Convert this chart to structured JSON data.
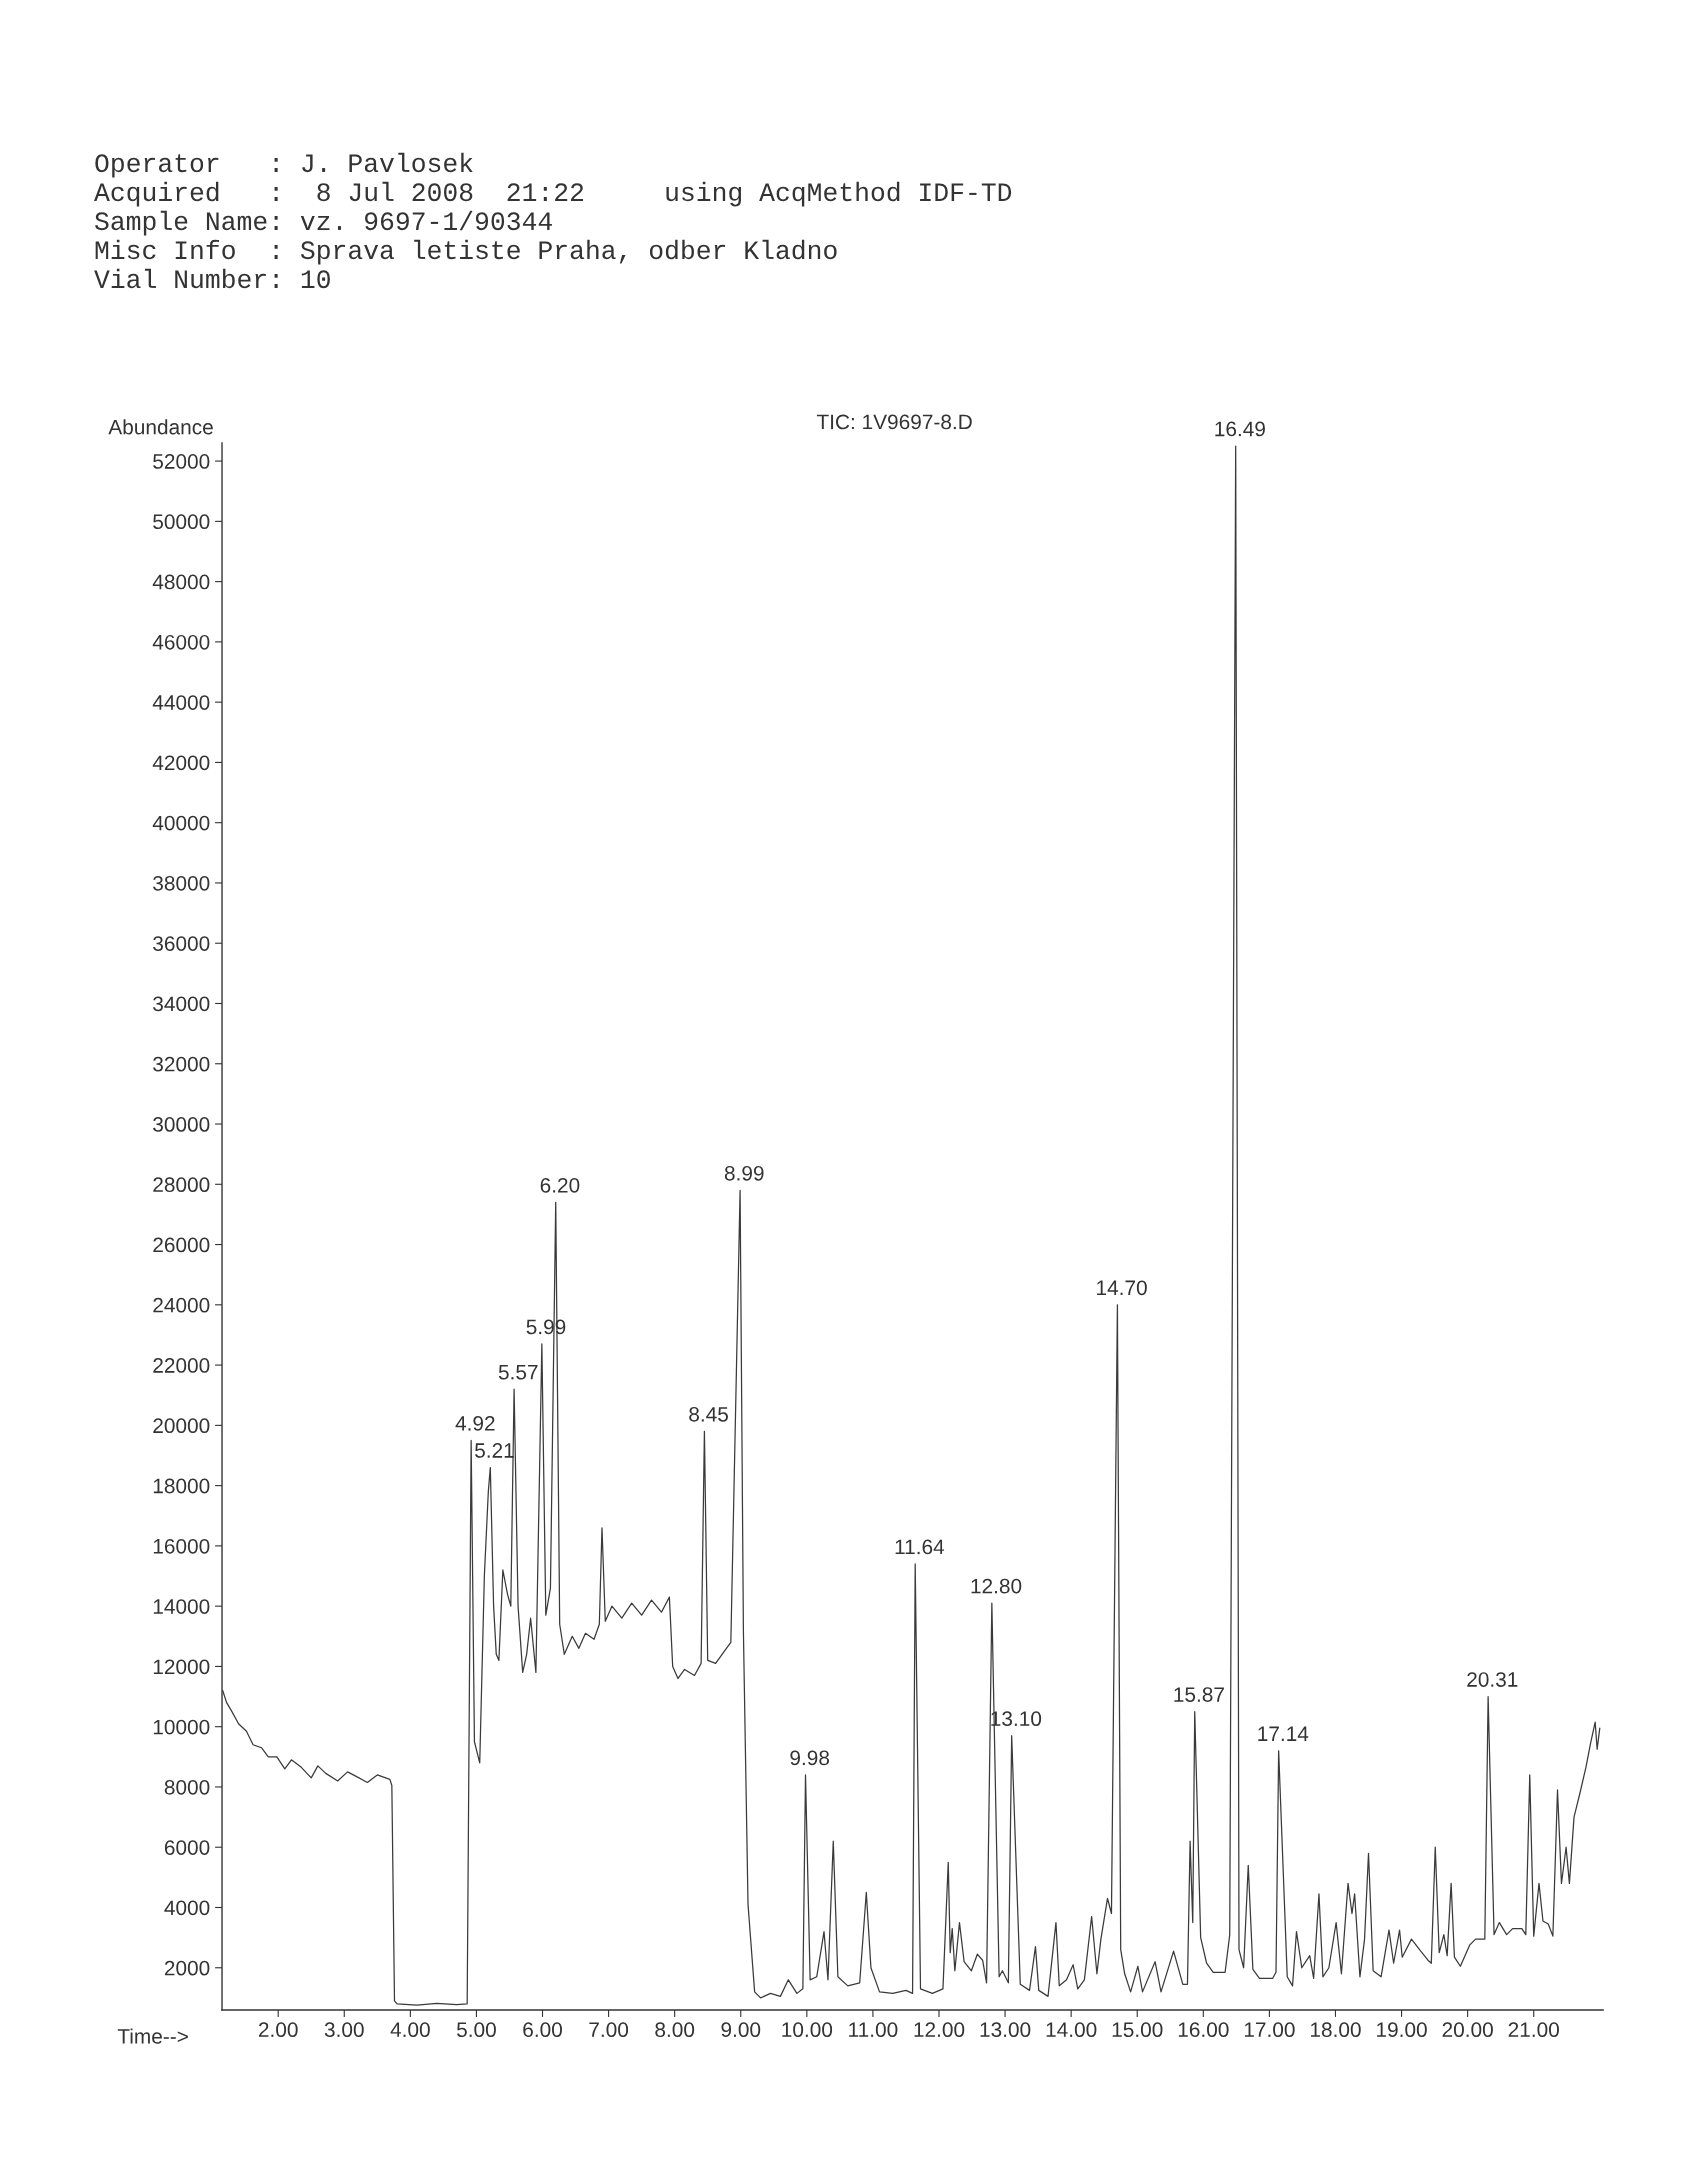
{
  "chart_data": {
    "type": "line",
    "title": "TIC: 1V9697-8.D",
    "xlabel": "Time-->",
    "ylabel": "Abundance",
    "x": [
      1.16,
      1.22,
      1.3,
      1.4,
      1.52,
      1.62,
      1.75,
      1.85,
      1.98,
      2.1,
      2.2,
      2.35,
      2.5,
      2.6,
      2.72,
      2.9,
      3.05,
      3.18,
      3.35,
      3.5,
      3.69,
      3.72,
      3.76,
      3.8,
      4.1,
      4.4,
      4.7,
      4.86,
      4.92,
      4.97,
      5.05,
      5.12,
      5.18,
      5.21,
      5.26,
      5.3,
      5.34,
      5.4,
      5.47,
      5.52,
      5.57,
      5.63,
      5.7,
      5.76,
      5.82,
      5.9,
      5.99,
      6.05,
      6.12,
      6.2,
      6.26,
      6.33,
      6.45,
      6.55,
      6.65,
      6.78,
      6.86,
      6.9,
      6.95,
      7.05,
      7.2,
      7.35,
      7.5,
      7.65,
      7.8,
      7.92,
      7.97,
      8.05,
      8.15,
      8.3,
      8.4,
      8.45,
      8.5,
      8.62,
      8.75,
      8.85,
      8.88,
      8.99,
      9.04,
      9.11,
      9.21,
      9.3,
      9.45,
      9.6,
      9.72,
      9.85,
      9.94,
      9.98,
      10.05,
      10.15,
      10.26,
      10.32,
      10.4,
      10.47,
      10.62,
      10.8,
      10.9,
      10.97,
      11.1,
      11.3,
      11.5,
      11.6,
      11.64,
      11.72,
      11.9,
      12.06,
      12.14,
      12.17,
      12.2,
      12.24,
      12.31,
      12.38,
      12.49,
      12.58,
      12.66,
      12.72,
      12.8,
      12.91,
      12.96,
      13.05,
      13.1,
      13.23,
      13.37,
      13.46,
      13.51,
      13.65,
      13.77,
      13.82,
      13.93,
      14.03,
      14.1,
      14.2,
      14.31,
      14.39,
      14.45,
      14.55,
      14.61,
      14.7,
      14.75,
      14.81,
      14.9,
      15.01,
      15.08,
      15.27,
      15.36,
      15.55,
      15.69,
      15.76,
      15.8,
      15.84,
      15.87,
      15.96,
      16.05,
      16.15,
      16.33,
      16.4,
      16.49,
      16.54,
      16.61,
      16.68,
      16.75,
      16.85,
      17.05,
      17.1,
      17.14,
      17.27,
      17.35,
      17.41,
      17.49,
      17.61,
      17.67,
      17.75,
      17.81,
      17.9,
      18.01,
      18.09,
      18.19,
      18.25,
      18.29,
      18.37,
      18.44,
      18.5,
      18.57,
      18.69,
      18.81,
      18.88,
      18.97,
      19.01,
      19.15,
      19.29,
      19.4,
      19.45,
      19.51,
      19.57,
      19.64,
      19.69,
      19.75,
      19.8,
      19.89,
      20.03,
      20.12,
      20.26,
      20.31,
      20.4,
      20.48,
      20.59,
      20.68,
      20.82,
      20.88,
      20.94,
      21.0,
      21.08,
      21.14,
      21.22,
      21.29,
      21.36,
      21.42,
      21.49,
      21.54,
      21.61,
      21.7,
      21.79,
      21.86,
      21.93,
      21.96,
      22.0
    ],
    "series": [
      {
        "color": "#3a3a3a",
        "values": [
          11200,
          10800,
          10500,
          10100,
          9850,
          9400,
          9300,
          9000,
          9000,
          8600,
          8900,
          8650,
          8300,
          8700,
          8450,
          8200,
          8500,
          8350,
          8150,
          8400,
          8250,
          8050,
          900,
          800,
          760,
          820,
          780,
          800,
          19500,
          9500,
          8800,
          15000,
          17800,
          18600,
          14000,
          12400,
          12200,
          15200,
          14400,
          14000,
          21200,
          14000,
          11800,
          12400,
          13600,
          11800,
          22700,
          13700,
          14600,
          27400,
          13400,
          12400,
          13000,
          12600,
          13100,
          12900,
          13400,
          16600,
          13500,
          14000,
          13600,
          14100,
          13700,
          14200,
          13800,
          14300,
          12000,
          11600,
          11900,
          11700,
          12100,
          19800,
          12200,
          12100,
          12500,
          12800,
          16000,
          27800,
          13200,
          4100,
          1200,
          1000,
          1150,
          1050,
          1600,
          1150,
          1300,
          8400,
          1600,
          1700,
          3200,
          1600,
          6200,
          1700,
          1400,
          1500,
          4500,
          2000,
          1200,
          1150,
          1250,
          1150,
          15400,
          1300,
          1150,
          1300,
          5500,
          2500,
          3300,
          1900,
          3500,
          2200,
          1900,
          2450,
          2250,
          1500,
          14100,
          1700,
          1900,
          1500,
          9700,
          1450,
          1250,
          2700,
          1250,
          1050,
          3500,
          1400,
          1600,
          2100,
          1300,
          1600,
          3700,
          1800,
          2950,
          4300,
          3800,
          24000,
          2600,
          1800,
          1200,
          2050,
          1200,
          2200,
          1200,
          2550,
          1450,
          1450,
          6200,
          3500,
          10500,
          3000,
          2150,
          1850,
          1850,
          3100,
          52500,
          2600,
          2000,
          5400,
          1950,
          1650,
          1650,
          1850,
          9200,
          1700,
          1400,
          3200,
          2000,
          2400,
          1650,
          4450,
          1700,
          2000,
          3500,
          1800,
          4800,
          3800,
          4450,
          1700,
          2950,
          5800,
          1900,
          1700,
          3250,
          2150,
          3250,
          2350,
          2950,
          2550,
          2250,
          2150,
          6000,
          2500,
          3100,
          2400,
          4800,
          2350,
          2050,
          2750,
          2950,
          2950,
          11000,
          3100,
          3500,
          3100,
          3300,
          3300,
          3100,
          8400,
          3050,
          4800,
          3550,
          3450,
          3050,
          7900,
          4800,
          6000,
          4800,
          7000,
          7800,
          8650,
          9450,
          10150,
          9250,
          9950
        ]
      }
    ],
    "xlim": [
      1.15,
      22.05
    ],
    "xticks": [
      {
        "value": 2,
        "label": "2.00"
      },
      {
        "value": 3,
        "label": "3.00"
      },
      {
        "value": 4,
        "label": "4.00"
      },
      {
        "value": 5,
        "label": "5.00"
      },
      {
        "value": 6,
        "label": "6.00"
      },
      {
        "value": 7,
        "label": "7.00"
      },
      {
        "value": 8,
        "label": "8.00"
      },
      {
        "value": 9,
        "label": "9.00"
      },
      {
        "value": 10,
        "label": "10.00"
      },
      {
        "value": 11,
        "label": "11.00"
      },
      {
        "value": 12,
        "label": "12.00"
      },
      {
        "value": 13,
        "label": "13.00"
      },
      {
        "value": 14,
        "label": "14.00"
      },
      {
        "value": 15,
        "label": "15.00"
      },
      {
        "value": 16,
        "label": "16.00"
      },
      {
        "value": 17,
        "label": "17.00"
      },
      {
        "value": 18,
        "label": "18.00"
      },
      {
        "value": 19,
        "label": "19.00"
      },
      {
        "value": 20,
        "label": "20.00"
      },
      {
        "value": 21,
        "label": "21.00"
      }
    ],
    "ylim": [
      600,
      52600
    ],
    "yticks": [
      2000,
      4000,
      6000,
      8000,
      10000,
      12000,
      14000,
      16000,
      18000,
      20000,
      22000,
      24000,
      26000,
      28000,
      30000,
      32000,
      34000,
      36000,
      38000,
      40000,
      42000,
      44000,
      46000,
      48000,
      50000,
      52000
    ],
    "annotations": [
      "Operator   : J. Pavlosek",
      "Acquired   :  8 Jul 2008  21:22     using AcqMethod IDF-TD",
      "Sample Name: vz. 9697-1/90344",
      "Misc Info  : Sprava letiste Praha, odber Kladno",
      "Vial Number: 10",
      {
        "text": "4.92",
        "x": 4.92,
        "y": 19500
      },
      {
        "text": "5.21",
        "x": 5.21,
        "y": 18600
      },
      {
        "text": "5.57",
        "x": 5.57,
        "y": 21200
      },
      {
        "text": "5.99",
        "x": 5.99,
        "y": 22700
      },
      {
        "text": "6.20",
        "x": 6.2,
        "y": 27400
      },
      {
        "text": "8.45",
        "x": 8.45,
        "y": 19800
      },
      {
        "text": "8.99",
        "x": 8.99,
        "y": 27800
      },
      {
        "text": "9.98",
        "x": 9.98,
        "y": 8400
      },
      {
        "text": "11.64",
        "x": 11.64,
        "y": 15400
      },
      {
        "text": "12.80",
        "x": 12.8,
        "y": 14100
      },
      {
        "text": "13.10",
        "x": 13.1,
        "y": 9700
      },
      {
        "text": "14.70",
        "x": 14.7,
        "y": 24000
      },
      {
        "text": "15.87",
        "x": 15.87,
        "y": 10500
      },
      {
        "text": "16.49",
        "x": 16.49,
        "y": 52500
      },
      {
        "text": "17.14",
        "x": 17.14,
        "y": 9200
      },
      {
        "text": "20.31",
        "x": 20.31,
        "y": 11000
      }
    ]
  }
}
